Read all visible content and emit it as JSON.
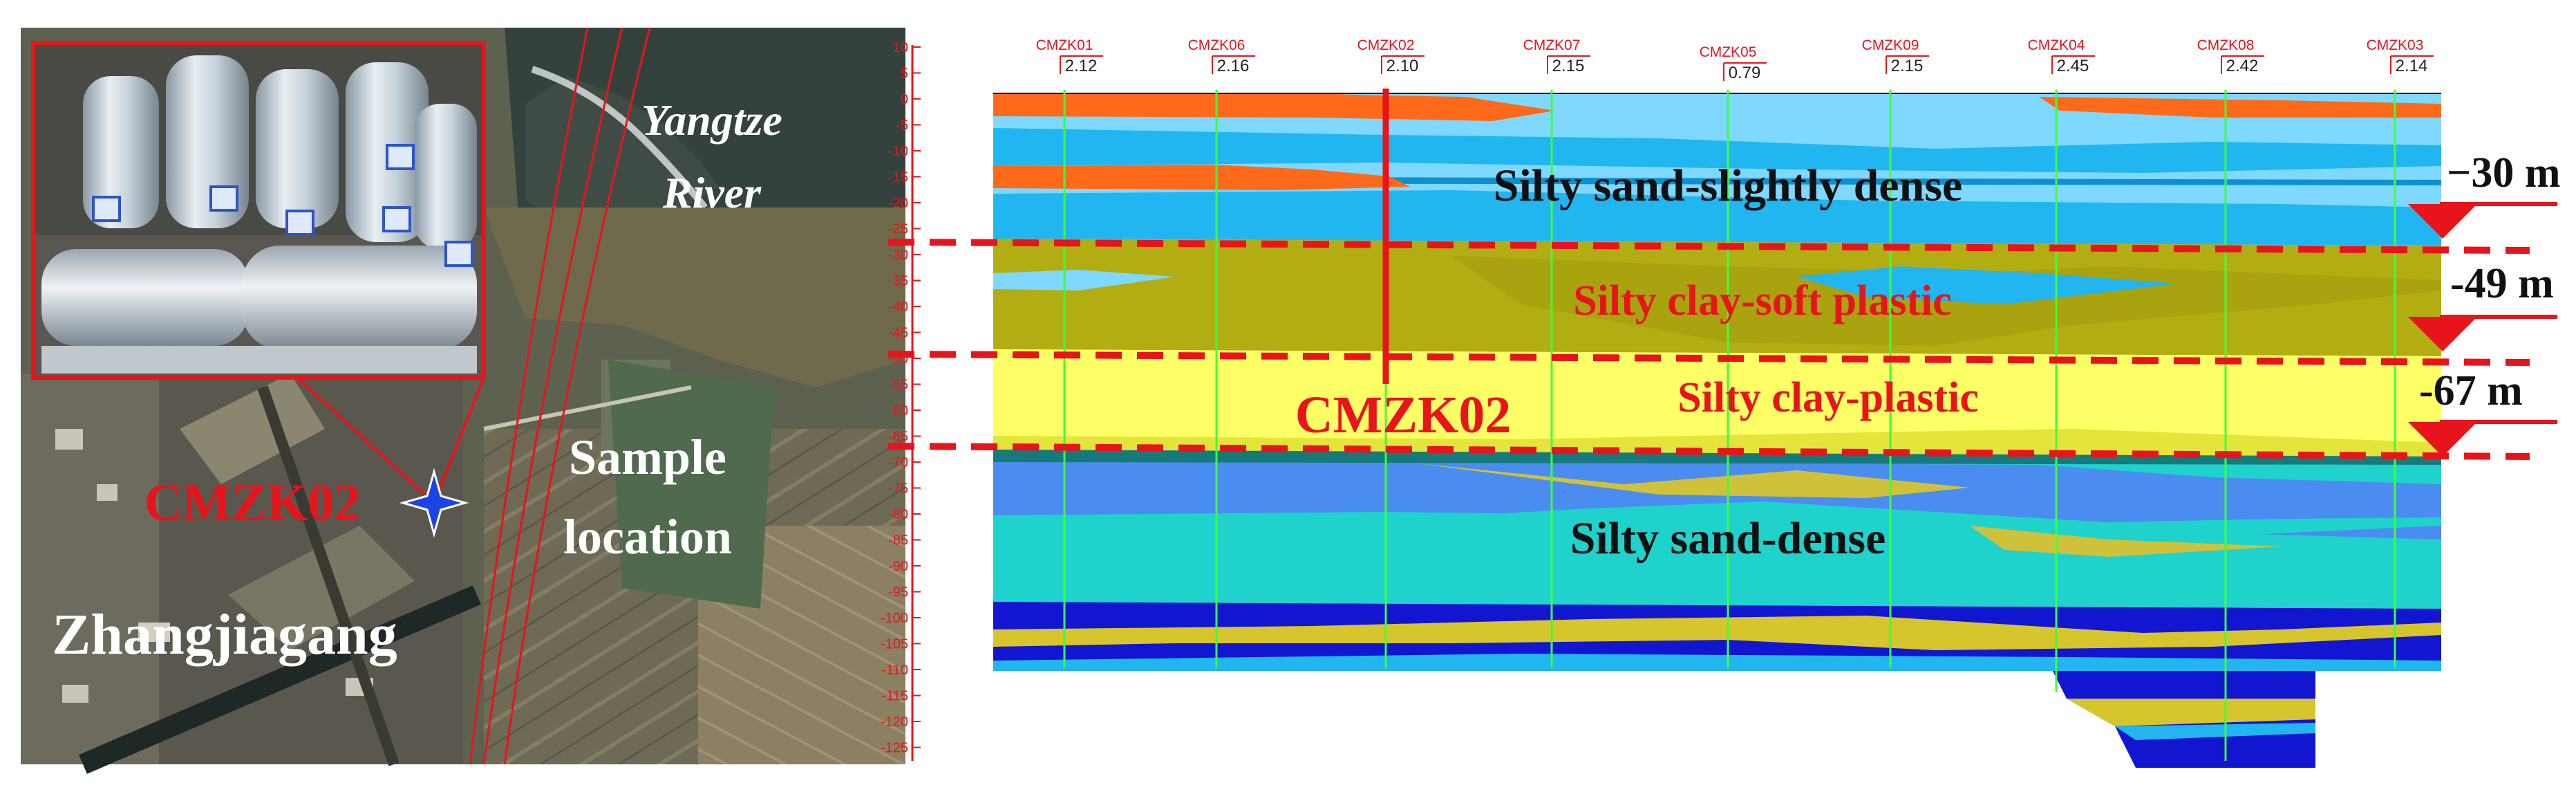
{
  "map_panel": {
    "river_label_line1": "Yangtze",
    "river_label_line2": "River",
    "sample_label_line1": "Sample",
    "sample_label_line2": "location",
    "town_label": "Zhangjiagang",
    "borehole_marker": "CMZK02"
  },
  "profile_panel": {
    "axis_ticks": [
      "10",
      "5",
      "0",
      "-5",
      "-10",
      "-15",
      "-20",
      "-25",
      "-30",
      "-35",
      "-40",
      "-45",
      "-50",
      "-55",
      "-60",
      "-65",
      "-70",
      "-75",
      "-80",
      "-85",
      "-90",
      "-95",
      "-100",
      "-105",
      "-110",
      "-115",
      "-120",
      "-125"
    ],
    "boreholes": [
      {
        "name": "CMZK01",
        "elevation": "2.12"
      },
      {
        "name": "CMZK06",
        "elevation": "2.16"
      },
      {
        "name": "CMZK02",
        "elevation": "2.10"
      },
      {
        "name": "CMZK07",
        "elevation": "2.15"
      },
      {
        "name": "CMZK05",
        "elevation": "0.79"
      },
      {
        "name": "CMZK09",
        "elevation": "2.15"
      },
      {
        "name": "CMZK04",
        "elevation": "2.45"
      },
      {
        "name": "CMZK08",
        "elevation": "2.42"
      },
      {
        "name": "CMZK03",
        "elevation": "2.14"
      }
    ],
    "layers": {
      "layer1": "Silty sand-slightly dense",
      "layer2": "Silty clay-soft plastic",
      "layer3": "Silty clay-plastic",
      "layer4": "Silty sand-dense"
    },
    "selected_borehole": "CMZK02",
    "depth_markers": [
      "−30 m",
      "-49 m",
      "-67 m"
    ]
  },
  "colors": {
    "accent_red": "#e8141b",
    "borehole_line": "#3dff3d",
    "silty_sand_light": "#7fd8ff",
    "silty_sand_blue": "#21b6f0",
    "silty_clay_olive": "#b2ad12",
    "silty_clay_yellow": "#ffff66",
    "dense_sand_teal": "#1fd2cc",
    "dense_sand_blue": "#4a8cf0",
    "deep_navy": "#1216d0",
    "orange_fill": "#ff6a1a"
  }
}
